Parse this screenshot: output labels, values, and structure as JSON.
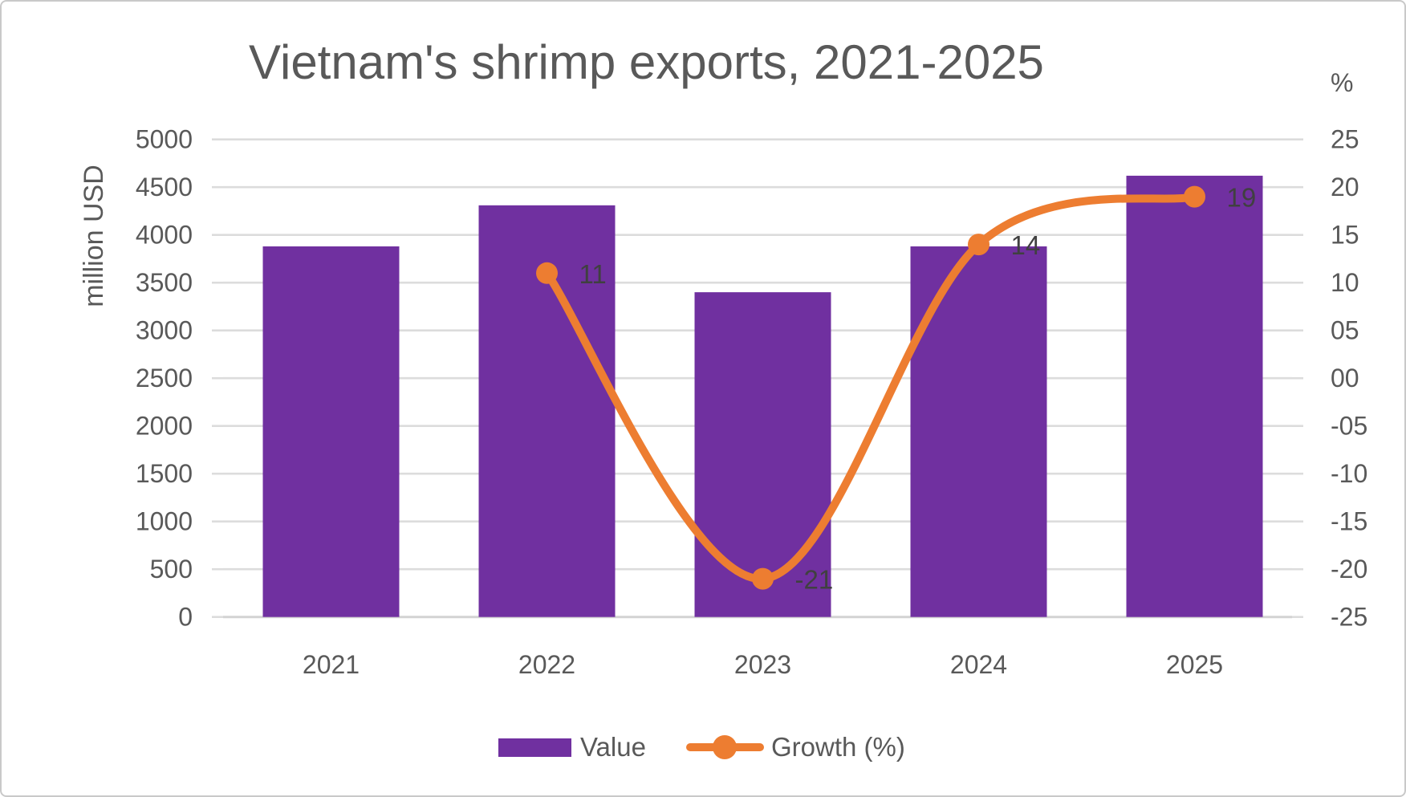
{
  "title": "Vietnam's shrimp exports, 2021-2025",
  "chart_data": {
    "type": "bar",
    "subtype": "combo-bar-line-dual-axis",
    "title": "Vietnam's shrimp exports, 2021-2025",
    "categories": [
      "2021",
      "2022",
      "2023",
      "2024",
      "2025"
    ],
    "series": [
      {
        "name": "Value",
        "type": "bar",
        "axis": "left",
        "values": [
          3880,
          4310,
          3400,
          3880,
          4620
        ]
      },
      {
        "name": "Growth (%)",
        "type": "line",
        "axis": "right",
        "smooth": true,
        "categories": [
          "2022",
          "2023",
          "2024",
          "2025"
        ],
        "values": [
          11,
          -21,
          14,
          19
        ],
        "point_labels": [
          "11",
          "-21",
          "14",
          "19"
        ]
      }
    ],
    "left_axis": {
      "label": "million USD",
      "min": 0,
      "max": 5000,
      "step": 500,
      "tick_labels": [
        "5000",
        "4500",
        "4000",
        "3500",
        "3000",
        "2500",
        "2000",
        "1500",
        "1000",
        "500",
        "0"
      ]
    },
    "right_axis": {
      "label": "%",
      "min": -25,
      "max": 25,
      "step": 5,
      "tick_labels": [
        "25",
        "20",
        "15",
        "10",
        "05",
        "00",
        "-05",
        "-10",
        "-15",
        "-20",
        "-25"
      ]
    },
    "grid": true,
    "legend_position": "bottom"
  },
  "legend": {
    "value_label": "Value",
    "growth_label": "Growth (%)"
  },
  "colors": {
    "bar": "#7030A0",
    "line": "#ED7D31",
    "grid": "#DCDCDC",
    "baseline": "#D3D3D3",
    "axis_text": "#595959",
    "data_label_text": "#404040",
    "title_text": "#595959",
    "background": "#FFFFFF"
  }
}
